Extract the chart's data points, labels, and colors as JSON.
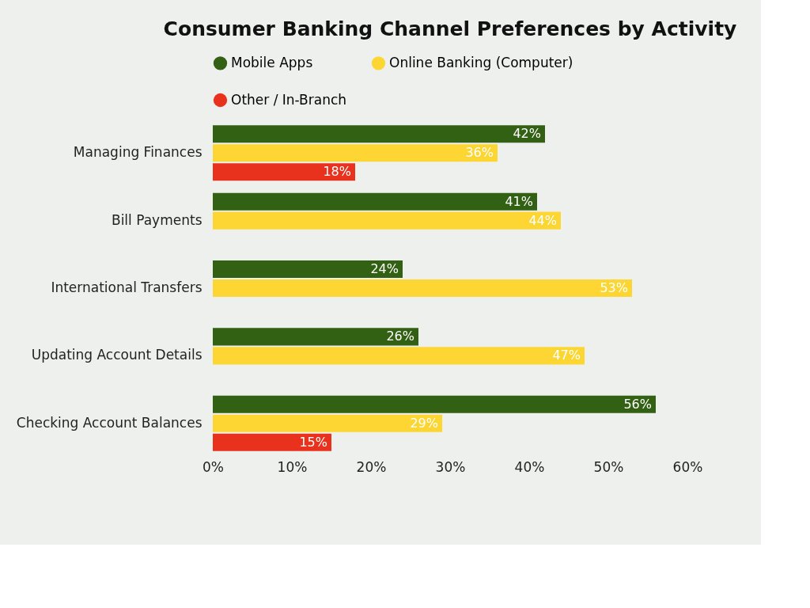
{
  "chart_data": {
    "type": "bar",
    "orientation": "horizontal",
    "title": "Consumer Banking Channel Preferences by Activity",
    "categories": [
      "Managing Finances",
      "Bill Payments",
      "International Transfers",
      "Updating Account Details",
      "Checking Account Balances"
    ],
    "series": [
      {
        "name": "Mobile Apps",
        "color": "#336114",
        "values": [
          42,
          41,
          24,
          26,
          56
        ],
        "value_labels": [
          "42%",
          "41%",
          "24%",
          "26%",
          "56%"
        ]
      },
      {
        "name": "Online Banking (Computer)",
        "color": "#fdd633",
        "values": [
          36,
          44,
          53,
          47,
          29
        ],
        "value_labels": [
          "36%",
          "44%",
          "53%",
          "47%",
          "29%"
        ]
      },
      {
        "name": "Other / In-Branch",
        "color": "#e8321e",
        "values": [
          18,
          null,
          null,
          null,
          15
        ],
        "value_labels": [
          "18%",
          null,
          null,
          null,
          "15%"
        ]
      }
    ],
    "xlim": [
      0,
      60
    ],
    "xticks": [
      {
        "value": 0,
        "label": "0%"
      },
      {
        "value": 10,
        "label": "10%"
      },
      {
        "value": 20,
        "label": "20%"
      },
      {
        "value": 30,
        "label": "30%"
      },
      {
        "value": 40,
        "label": "40%"
      },
      {
        "value": 50,
        "label": "50%"
      },
      {
        "value": 60,
        "label": "60%"
      }
    ],
    "legend": "top",
    "grid": false
  }
}
